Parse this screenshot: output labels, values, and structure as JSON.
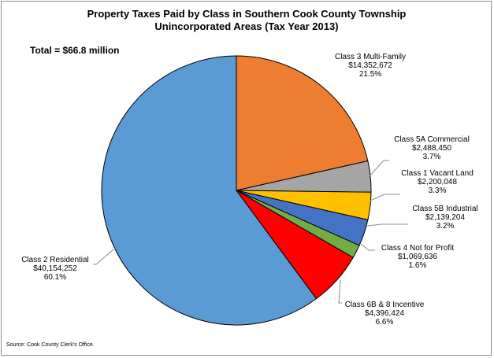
{
  "chart_data": {
    "type": "pie",
    "title_line1": "Property Taxes Paid by Class in Southern Cook County Township",
    "title_line2": "Unincorporated Areas (Tax Year 2013)",
    "total_label": "Total = $66.8 million",
    "source": "Source: Cook County Clerk's Office.",
    "slices": [
      {
        "name": "Class 3 Multi-Family",
        "amount": "$14,352,672",
        "percent_label": "21.5%",
        "value": 14352672,
        "color": "#ED7D31"
      },
      {
        "name": "Class 5A Commercial",
        "amount": "$2,488,450",
        "percent_label": "3.7%",
        "value": 2488450,
        "color": "#A5A5A5"
      },
      {
        "name": "Class 1 Vacant Land",
        "amount": "$2,200,048",
        "percent_label": "3.3%",
        "value": 2200048,
        "color": "#FFC000"
      },
      {
        "name": "Class 5B Industrial",
        "amount": "$2,139,204",
        "percent_label": "3.2%",
        "value": 2139204,
        "color": "#4472C4"
      },
      {
        "name": "Class 4 Not for Profit",
        "amount": "$1,069,636",
        "percent_label": "1.6%",
        "value": 1069636,
        "color": "#70AD47"
      },
      {
        "name": "Class 6B & 8 Incentive",
        "amount": "$4,396,424",
        "percent_label": "6.6%",
        "value": 4396424,
        "color": "#FF0000"
      },
      {
        "name": "Class 2 Residential",
        "amount": "$40,154,252",
        "percent_label": "60.1%",
        "value": 40154252,
        "color": "#5B9BD5"
      }
    ]
  }
}
